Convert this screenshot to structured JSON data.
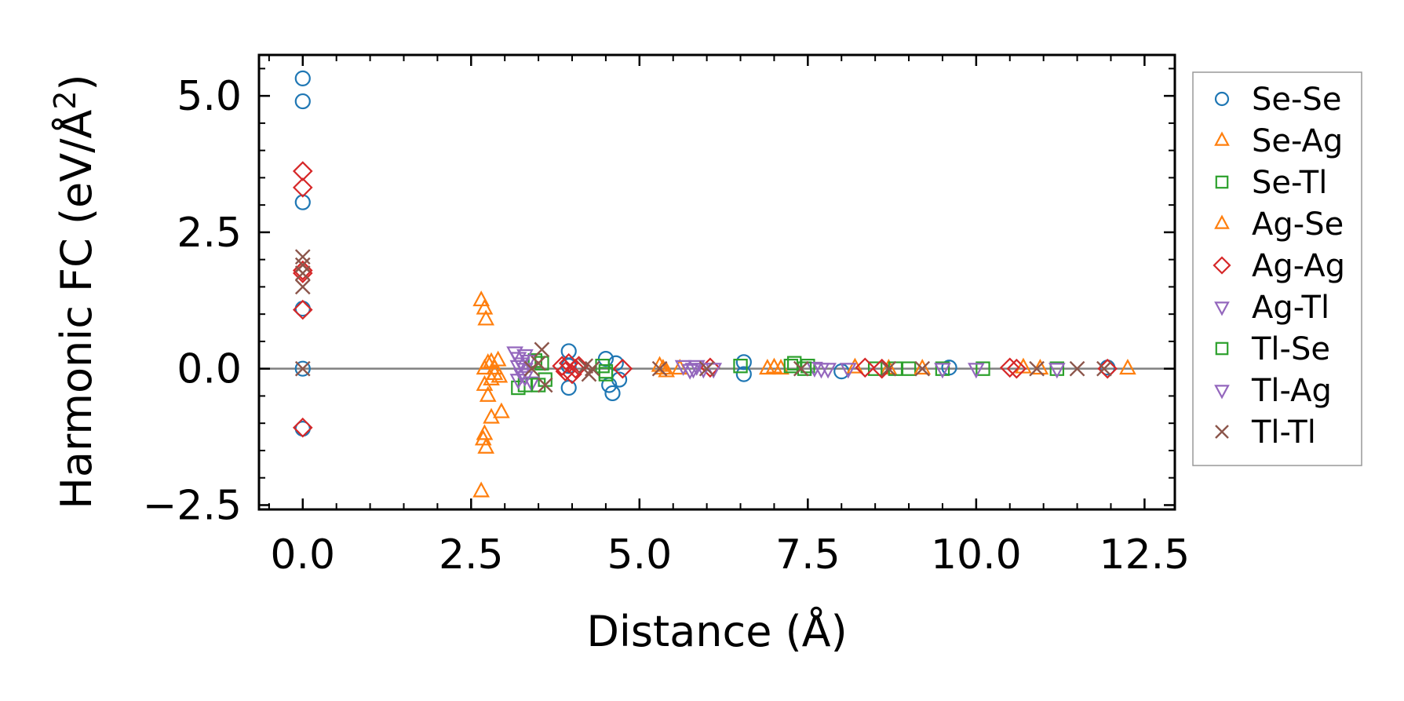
{
  "chart_data": {
    "type": "scatter",
    "xlabel": "Distance (Å)",
    "ylabel_text": "Harmonic FC (eV/Å",
    "ylabel_superscript": "2",
    "ylabel_close": ")",
    "xlim": [
      -0.65,
      12.95
    ],
    "ylim": [
      -2.58,
      5.75
    ],
    "xticks": [
      0.0,
      2.5,
      5.0,
      7.5,
      10.0,
      12.5
    ],
    "xtick_labels": [
      "0.0",
      "2.5",
      "5.0",
      "7.5",
      "10.0",
      "12.5"
    ],
    "yticks": [
      -2.5,
      0.0,
      2.5,
      5.0
    ],
    "ytick_labels": [
      "−2.5",
      "0.0",
      "2.5",
      "5.0"
    ],
    "zero_line": 0.0,
    "grid": false,
    "legend_position": "outside-right",
    "series": [
      {
        "name": "Se-Se",
        "marker": "circle",
        "color": "#1f77b4",
        "points": [
          [
            0,
            5.32
          ],
          [
            0,
            4.9
          ],
          [
            0,
            3.05
          ],
          [
            0,
            1.1
          ],
          [
            0,
            -1.1
          ],
          [
            0,
            0
          ],
          [
            3.95,
            0.32
          ],
          [
            3.95,
            -0.35
          ],
          [
            3.95,
            0.05
          ],
          [
            4.5,
            0.18
          ],
          [
            4.55,
            -0.3
          ],
          [
            4.6,
            -0.45
          ],
          [
            4.65,
            0.1
          ],
          [
            4.7,
            -0.2
          ],
          [
            6.55,
            0.12
          ],
          [
            6.55,
            -0.1
          ],
          [
            8.0,
            -0.05
          ],
          [
            9.6,
            0.02
          ],
          [
            11.95,
            0.02
          ]
        ]
      },
      {
        "name": "Se-Ag",
        "marker": "triangle-up",
        "color": "#ff7f0e",
        "points": [
          [
            2.65,
            1.25
          ],
          [
            2.7,
            1.1
          ],
          [
            2.72,
            0.9
          ],
          [
            2.75,
            0.1
          ],
          [
            2.8,
            0.12
          ],
          [
            2.85,
            0.0
          ],
          [
            2.85,
            -0.1
          ],
          [
            2.7,
            -0.3
          ],
          [
            2.75,
            -0.5
          ],
          [
            2.8,
            -0.9
          ],
          [
            2.7,
            -1.2
          ],
          [
            2.68,
            -1.3
          ],
          [
            2.72,
            -1.45
          ],
          [
            2.65,
            -2.25
          ],
          [
            2.95,
            -0.8
          ],
          [
            2.9,
            0.15
          ],
          [
            2.92,
            -0.15
          ],
          [
            5.3,
            0.05
          ],
          [
            5.4,
            -0.05
          ],
          [
            6.9,
            0.0
          ],
          [
            7.0,
            0.02
          ],
          [
            8.7,
            0.0
          ],
          [
            10.95,
            0.0
          ],
          [
            12.25,
            0.0
          ]
        ]
      },
      {
        "name": "Se-Tl",
        "marker": "square",
        "color": "#2ca02c",
        "points": [
          [
            3.2,
            -0.35
          ],
          [
            3.3,
            -0.3
          ],
          [
            3.45,
            0.15
          ],
          [
            3.6,
            -0.2
          ],
          [
            4.45,
            0.05
          ],
          [
            4.5,
            -0.1
          ],
          [
            6.5,
            0.05
          ],
          [
            7.3,
            0.1
          ],
          [
            7.5,
            0.05
          ],
          [
            8.5,
            0.0
          ],
          [
            9.0,
            0.0
          ],
          [
            9.5,
            0.0
          ],
          [
            10.1,
            0.0
          ],
          [
            11.2,
            0.0
          ]
        ]
      },
      {
        "name": "Ag-Se",
        "marker": "triangle-up",
        "color": "#ff7f0e",
        "points": [
          [
            2.7,
            0.0
          ],
          [
            2.8,
            -0.2
          ],
          [
            5.35,
            0.0
          ],
          [
            5.6,
            0.0
          ],
          [
            7.1,
            0.0
          ],
          [
            8.2,
            0.02
          ],
          [
            9.2,
            0.0
          ],
          [
            10.7,
            0.02
          ]
        ]
      },
      {
        "name": "Ag-Ag",
        "marker": "diamond",
        "color": "#d62728",
        "points": [
          [
            0,
            3.62
          ],
          [
            0,
            3.32
          ],
          [
            0,
            1.8
          ],
          [
            0,
            1.75
          ],
          [
            0,
            1.08
          ],
          [
            0,
            -1.08
          ],
          [
            3.85,
            0.05
          ],
          [
            3.9,
            -0.05
          ],
          [
            3.95,
            0.1
          ],
          [
            4.0,
            -0.1
          ],
          [
            4.05,
            0.0
          ],
          [
            4.1,
            0.05
          ],
          [
            4.75,
            0.0
          ],
          [
            6.05,
            0.02
          ],
          [
            8.35,
            0.02
          ],
          [
            8.6,
            0.0
          ],
          [
            10.5,
            0.02
          ],
          [
            10.6,
            0.0
          ],
          [
            11.95,
            0.0
          ]
        ]
      },
      {
        "name": "Ag-Tl",
        "marker": "triangle-down",
        "color": "#9467bd",
        "points": [
          [
            3.15,
            0.3
          ],
          [
            3.2,
            0.2
          ],
          [
            3.25,
            0.1
          ],
          [
            3.3,
            0.0
          ],
          [
            3.25,
            -0.1
          ],
          [
            3.2,
            -0.2
          ],
          [
            3.3,
            0.25
          ],
          [
            3.4,
            -0.25
          ],
          [
            3.35,
            0.15
          ],
          [
            5.65,
            0.05
          ],
          [
            5.75,
            -0.02
          ],
          [
            5.85,
            0.05
          ],
          [
            5.95,
            0.0
          ],
          [
            6.1,
            0.0
          ],
          [
            7.6,
            0.02
          ],
          [
            7.7,
            0.0
          ],
          [
            8.1,
            0.0
          ],
          [
            10.0,
            0.0
          ],
          [
            11.2,
            0.0
          ]
        ]
      },
      {
        "name": "Tl-Se",
        "marker": "square",
        "color": "#2ca02c",
        "points": [
          [
            3.5,
            -0.3
          ],
          [
            3.55,
            0.1
          ],
          [
            4.5,
            -0.05
          ],
          [
            7.25,
            0.05
          ],
          [
            7.45,
            0.0
          ],
          [
            8.8,
            0.0
          ]
        ]
      },
      {
        "name": "Tl-Ag",
        "marker": "triangle-down",
        "color": "#9467bd",
        "points": [
          [
            3.2,
            0.05
          ],
          [
            3.3,
            -0.15
          ],
          [
            5.8,
            0.0
          ],
          [
            7.8,
            0.0
          ],
          [
            9.5,
            0.0
          ]
        ]
      },
      {
        "name": "Tl-Tl",
        "marker": "x",
        "color": "#8c564b",
        "points": [
          [
            0,
            2.05
          ],
          [
            0,
            1.9
          ],
          [
            0,
            1.75
          ],
          [
            0,
            1.5
          ],
          [
            0,
            0.0
          ],
          [
            3.4,
            0.0
          ],
          [
            3.55,
            0.35
          ],
          [
            3.6,
            -0.3
          ],
          [
            3.5,
            0.1
          ],
          [
            4.2,
            0.05
          ],
          [
            4.25,
            -0.1
          ],
          [
            4.3,
            0.0
          ],
          [
            5.3,
            0.0
          ],
          [
            6.0,
            0.0
          ],
          [
            7.4,
            0.0
          ],
          [
            8.7,
            0.0
          ],
          [
            9.2,
            0.0
          ],
          [
            10.9,
            0.0
          ],
          [
            11.5,
            0.0
          ],
          [
            11.9,
            0.0
          ]
        ]
      }
    ]
  }
}
